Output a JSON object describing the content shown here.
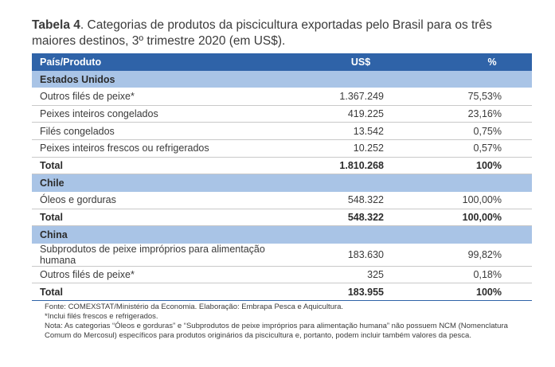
{
  "caption": {
    "label": "Tabela 4",
    "text": ". Categorias de produtos da piscicultura exportadas pelo Brasil para os três maiores destinos, 3º trimestre 2020 (em US$)."
  },
  "table": {
    "headers": [
      "País/Produto",
      "US$",
      "%"
    ],
    "groups": [
      {
        "name": "Estados Unidos",
        "rows": [
          [
            "Outros filés de peixe*",
            "1.367.249",
            "75,53%"
          ],
          [
            "Peixes inteiros congelados",
            "419.225",
            "23,16%"
          ],
          [
            "Filés congelados",
            "13.542",
            "0,75%"
          ],
          [
            "Peixes inteiros frescos ou refrigerados",
            "10.252",
            "0,57%"
          ]
        ],
        "total": [
          "Total",
          "1.810.268",
          "100%"
        ]
      },
      {
        "name": "Chile",
        "rows": [
          [
            "Óleos e gorduras",
            "548.322",
            "100,00%"
          ]
        ],
        "total": [
          "Total",
          "548.322",
          "100,00%"
        ]
      },
      {
        "name": "China",
        "rows": [
          [
            "Subprodutos de peixe impróprios para alimentação humana",
            "183.630",
            "99,82%"
          ],
          [
            "Outros filés de peixe*",
            "325",
            "0,18%"
          ]
        ],
        "total": [
          "Total",
          "183.955",
          "100%"
        ]
      }
    ]
  },
  "notes": {
    "source": "Fonte: COMEXSTAT/Ministério da Economia. Elaboração: Embrapa Pesca e Aquicultura.",
    "footnote": "*Inclui filés frescos e refrigerados.",
    "note": "Nota: As categorias “Óleos e gorduras” e “Subprodutos de peixe impróprios para alimentação humana” não possuem NCM (Nomenclatura Comum do Mercosul) específicos para produtos originários da piscicultura e, portanto, podem incluir também valores da pesca."
  }
}
